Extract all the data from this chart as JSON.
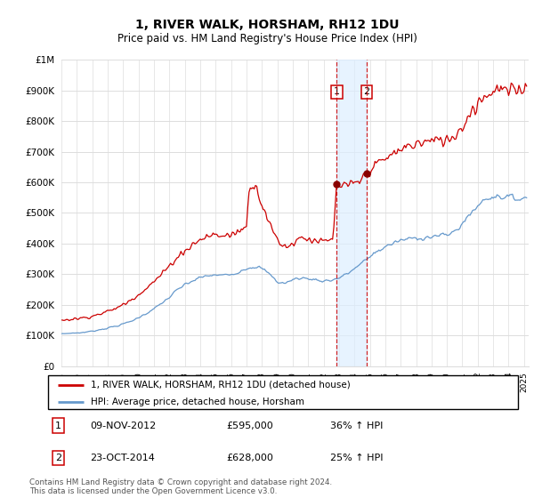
{
  "title": "1, RIVER WALK, HORSHAM, RH12 1DU",
  "subtitle": "Price paid vs. HM Land Registry's House Price Index (HPI)",
  "legend_line1": "1, RIVER WALK, HORSHAM, RH12 1DU (detached house)",
  "legend_line2": "HPI: Average price, detached house, Horsham",
  "transaction1_date": "09-NOV-2012",
  "transaction1_price": "£595,000",
  "transaction1_hpi": "36% ↑ HPI",
  "transaction1_year": 2012.86,
  "transaction1_value": 595000,
  "transaction2_date": "23-OCT-2014",
  "transaction2_price": "£628,000",
  "transaction2_hpi": "25% ↑ HPI",
  "transaction2_year": 2014.79,
  "transaction2_value": 628000,
  "footer": "Contains HM Land Registry data © Crown copyright and database right 2024.\nThis data is licensed under the Open Government Licence v3.0.",
  "red_color": "#cc0000",
  "blue_color": "#6699cc",
  "dot_color": "#880000",
  "ylim_max": 1000000,
  "xlim_start": 1995.0,
  "xlim_end": 2025.3,
  "background_color": "#ffffff",
  "grid_color": "#dddddd",
  "title_fontsize": 10,
  "subtitle_fontsize": 8.5
}
